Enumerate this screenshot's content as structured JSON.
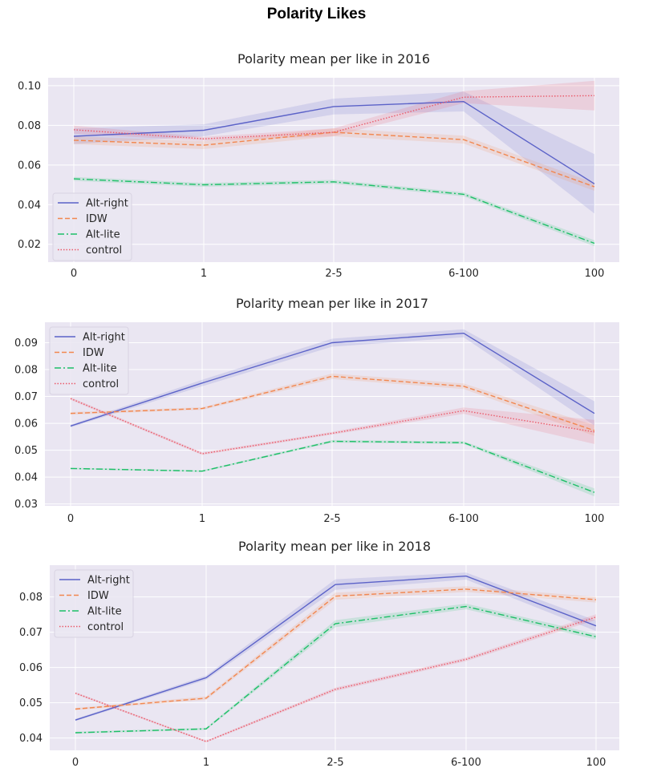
{
  "figure": {
    "title": "Polarity Likes"
  },
  "colors": {
    "background": "#eae6f2",
    "grid": "#ffffff",
    "Alt-right": "#5b62c8",
    "IDW": "#f2874f",
    "Alt-lite": "#1dbf67",
    "control": "#ea5a6a"
  },
  "chart_data": [
    {
      "type": "line",
      "title": "Polarity mean per like in 2016",
      "categories": [
        "0",
        "1",
        "2-5",
        "6-100",
        "100"
      ],
      "ylim": [
        0.011,
        0.104
      ],
      "yticks": [
        0.1,
        0.08,
        0.06,
        0.04,
        0.02
      ],
      "ytick_labels": [
        "0.10",
        "0.08",
        "0.06",
        "0.04",
        "0.02"
      ],
      "grid": true,
      "legend": "lower-left",
      "series": [
        {
          "name": "Alt-right",
          "style": "solid",
          "values": [
            0.0745,
            0.0775,
            0.0895,
            0.092,
            0.0505
          ],
          "band": [
            0.004,
            0.003,
            0.004,
            0.005,
            0.015
          ]
        },
        {
          "name": "IDW",
          "style": "dashed",
          "values": [
            0.0725,
            0.07,
            0.0765,
            0.0728,
            0.049
          ],
          "band": [
            0.002,
            0.002,
            0.002,
            0.002,
            0.002
          ]
        },
        {
          "name": "Alt-lite",
          "style": "dashdot",
          "values": [
            0.053,
            0.05,
            0.0515,
            0.0452,
            0.0205
          ],
          "band": [
            0.001,
            0.001,
            0.001,
            0.001,
            0.0015
          ]
        },
        {
          "name": "control",
          "style": "dotted",
          "values": [
            0.0778,
            0.0732,
            0.0765,
            0.0942,
            0.095
          ],
          "band": [
            0.002,
            0.001,
            0.002,
            0.003,
            0.0075
          ]
        }
      ]
    },
    {
      "type": "line",
      "title": "Polarity mean per like in 2017",
      "categories": [
        "0",
        "1",
        "2-5",
        "6-100",
        "100"
      ],
      "ylim": [
        0.0293,
        0.0976
      ],
      "yticks": [
        0.09,
        0.08,
        0.07,
        0.06,
        0.05,
        0.04,
        0.03
      ],
      "ytick_labels": [
        "0.09",
        "0.08",
        "0.07",
        "0.06",
        "0.05",
        "0.04",
        "0.03"
      ],
      "grid": true,
      "legend": "upper-left",
      "series": [
        {
          "name": "Alt-right",
          "style": "solid",
          "values": [
            0.059,
            0.075,
            0.09,
            0.0935,
            0.0637
          ],
          "band": [
            0.0005,
            0.0012,
            0.0015,
            0.0015,
            0.0045
          ]
        },
        {
          "name": "IDW",
          "style": "dashed",
          "values": [
            0.0637,
            0.0655,
            0.0775,
            0.0738,
            0.0573
          ],
          "band": [
            0.0005,
            0.0005,
            0.001,
            0.001,
            0.002
          ]
        },
        {
          "name": "Alt-lite",
          "style": "dashdot",
          "values": [
            0.0432,
            0.0422,
            0.0533,
            0.0528,
            0.0343
          ],
          "band": [
            0.0003,
            0.0003,
            0.0005,
            0.0005,
            0.0015
          ]
        },
        {
          "name": "control",
          "style": "dotted",
          "values": [
            0.0692,
            0.0487,
            0.0563,
            0.0647,
            0.0568
          ],
          "band": [
            0.0005,
            0.0005,
            0.0005,
            0.0012,
            0.0045
          ]
        }
      ]
    },
    {
      "type": "line",
      "title": "Polarity mean per like in 2018",
      "categories": [
        "0",
        "1",
        "2-5",
        "6-100",
        "100"
      ],
      "ylim": [
        0.0365,
        0.089
      ],
      "yticks": [
        0.08,
        0.07,
        0.06,
        0.05,
        0.04
      ],
      "ytick_labels": [
        "0.08",
        "0.07",
        "0.06",
        "0.05",
        "0.04"
      ],
      "grid": true,
      "legend": "upper-left",
      "series": [
        {
          "name": "Alt-right",
          "style": "solid",
          "values": [
            0.0451,
            0.0571,
            0.0835,
            0.0859,
            0.0718
          ],
          "band": [
            0.0003,
            0.0006,
            0.0015,
            0.001,
            0.0015
          ]
        },
        {
          "name": "IDW",
          "style": "dashed",
          "values": [
            0.0482,
            0.0513,
            0.0802,
            0.0822,
            0.0792
          ],
          "band": [
            0.0003,
            0.0005,
            0.001,
            0.0008,
            0.0008
          ]
        },
        {
          "name": "Alt-lite",
          "style": "dashdot",
          "values": [
            0.0415,
            0.0426,
            0.0724,
            0.0773,
            0.0687
          ],
          "band": [
            0.0003,
            0.0003,
            0.001,
            0.0008,
            0.0008
          ]
        },
        {
          "name": "control",
          "style": "dotted",
          "values": [
            0.0527,
            0.039,
            0.0538,
            0.0623,
            0.0743
          ],
          "band": [
            0.0003,
            0.0003,
            0.0005,
            0.0005,
            0.0008
          ]
        }
      ]
    }
  ]
}
